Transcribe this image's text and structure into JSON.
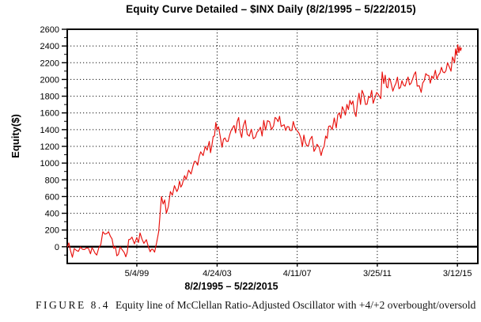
{
  "title": "Equity Curve Detailed – $INX Daily (8/2/1995 – 5/22/2015)",
  "caption": {
    "label": "FIGURE 8.4",
    "text": "Equity line of McClellan Ratio-Adjusted Oscillator with +4/+2 overbought/oversold"
  },
  "chart_data": {
    "type": "line",
    "title": "Equity Curve Detailed – $INX Daily (8/2/1995 – 5/22/2015)",
    "xlabel": "8/2/1995 – 5/22/2015",
    "ylabel": "Equity($)",
    "series_name": "Equity curve ($INX daily)",
    "line_color": "#e8100c",
    "grid": "dotted horizontal every 200, dotted vertical at date ticks",
    "legend": "none",
    "ylim": [
      -200,
      2600
    ],
    "y_label_ticks": [
      0,
      200,
      400,
      600,
      800,
      1000,
      1200,
      1400,
      1600,
      1800,
      2000,
      2200,
      2400,
      2600
    ],
    "y_minor_step": 100,
    "zero_line": 0,
    "xlim_years": [
      1995.9,
      2016.2
    ],
    "x_ticks": [
      {
        "year": 1999.34,
        "label": "5/4/99"
      },
      {
        "year": 2003.31,
        "label": "4/24/03"
      },
      {
        "year": 2007.27,
        "label": "4/11/07"
      },
      {
        "year": 2011.23,
        "label": "3/25/11"
      },
      {
        "year": 2015.19,
        "label": "3/12/15"
      }
    ],
    "points": [
      [
        1995.9,
        -5
      ],
      [
        1996.06,
        -45
      ],
      [
        1996.25,
        -20
      ],
      [
        1996.45,
        -55
      ],
      [
        1996.65,
        -30
      ],
      [
        1996.85,
        -15
      ],
      [
        1997.05,
        -85
      ],
      [
        1997.2,
        -40
      ],
      [
        1997.36,
        -100
      ],
      [
        1997.56,
        25
      ],
      [
        1997.76,
        150
      ],
      [
        1998.03,
        125
      ],
      [
        1998.2,
        -20
      ],
      [
        1998.43,
        -90
      ],
      [
        1998.6,
        -30
      ],
      [
        1998.72,
        -70
      ],
      [
        1998.94,
        85
      ],
      [
        1999.1,
        115
      ],
      [
        1999.22,
        35
      ],
      [
        1999.34,
        110
      ],
      [
        1999.5,
        165
      ],
      [
        1999.69,
        40
      ],
      [
        1999.81,
        85
      ],
      [
        2000.0,
        -60
      ],
      [
        2000.13,
        -30
      ],
      [
        2000.22,
        -65
      ],
      [
        2000.32,
        50
      ],
      [
        2000.42,
        180
      ],
      [
        2000.5,
        420
      ],
      [
        2000.56,
        600
      ],
      [
        2000.64,
        510
      ],
      [
        2000.72,
        560
      ],
      [
        2000.8,
        400
      ],
      [
        2000.9,
        480
      ],
      [
        2001.0,
        660
      ],
      [
        2001.1,
        615
      ],
      [
        2001.2,
        730
      ],
      [
        2001.32,
        660
      ],
      [
        2001.45,
        785
      ],
      [
        2001.58,
        740
      ],
      [
        2001.7,
        850
      ],
      [
        2001.78,
        805
      ],
      [
        2001.9,
        915
      ],
      [
        2002.02,
        870
      ],
      [
        2002.12,
        965
      ],
      [
        2002.25,
        1020
      ],
      [
        2002.35,
        975
      ],
      [
        2002.5,
        1135
      ],
      [
        2002.62,
        1090
      ],
      [
        2002.72,
        1200
      ],
      [
        2002.82,
        1155
      ],
      [
        2002.92,
        1260
      ],
      [
        2003.05,
        1210
      ],
      [
        2003.18,
        1325
      ],
      [
        2003.31,
        1400
      ],
      [
        2003.45,
        1340
      ],
      [
        2003.55,
        1190
      ],
      [
        2003.7,
        1300
      ],
      [
        2003.85,
        1260
      ],
      [
        2004.0,
        1390
      ],
      [
        2004.15,
        1450
      ],
      [
        2004.3,
        1495
      ],
      [
        2004.45,
        1375
      ],
      [
        2004.6,
        1440
      ],
      [
        2004.8,
        1345
      ],
      [
        2005.0,
        1405
      ],
      [
        2005.2,
        1310
      ],
      [
        2005.45,
        1430
      ],
      [
        2005.7,
        1395
      ],
      [
        2005.9,
        1495
      ],
      [
        2006.1,
        1445
      ],
      [
        2006.25,
        1530
      ],
      [
        2006.4,
        1560
      ],
      [
        2006.55,
        1450
      ],
      [
        2006.7,
        1390
      ],
      [
        2006.85,
        1435
      ],
      [
        2007.0,
        1390
      ],
      [
        2007.15,
        1430
      ],
      [
        2007.27,
        1385
      ],
      [
        2007.45,
        1300
      ],
      [
        2007.6,
        1335
      ],
      [
        2007.75,
        1205
      ],
      [
        2007.9,
        1280
      ],
      [
        2008.1,
        1140
      ],
      [
        2008.25,
        1225
      ],
      [
        2008.45,
        1090
      ],
      [
        2008.6,
        1200
      ],
      [
        2008.75,
        1295
      ],
      [
        2008.9,
        1445
      ],
      [
        2009.0,
        1400
      ],
      [
        2009.1,
        1540
      ],
      [
        2009.2,
        1420
      ],
      [
        2009.35,
        1600
      ],
      [
        2009.5,
        1675
      ],
      [
        2009.65,
        1575
      ],
      [
        2009.8,
        1640
      ],
      [
        2009.95,
        1700
      ],
      [
        2010.1,
        1605
      ],
      [
        2010.25,
        1730
      ],
      [
        2010.4,
        1700
      ],
      [
        2010.55,
        1825
      ],
      [
        2010.65,
        1700
      ],
      [
        2010.8,
        1795
      ],
      [
        2010.95,
        1870
      ],
      [
        2011.1,
        1770
      ],
      [
        2011.2,
        1845
      ],
      [
        2011.3,
        1815
      ],
      [
        2011.4,
        1770
      ],
      [
        2011.47,
        2090
      ],
      [
        2011.55,
        1950
      ],
      [
        2011.62,
        2050
      ],
      [
        2011.75,
        1900
      ],
      [
        2011.88,
        1985
      ],
      [
        2012.0,
        1860
      ],
      [
        2012.15,
        1955
      ],
      [
        2012.3,
        1890
      ],
      [
        2012.45,
        1985
      ],
      [
        2012.6,
        1920
      ],
      [
        2012.75,
        2030
      ],
      [
        2012.9,
        1955
      ],
      [
        2013.05,
        2060
      ],
      [
        2013.2,
        1920
      ],
      [
        2013.4,
        1845
      ],
      [
        2013.55,
        1985
      ],
      [
        2013.7,
        2050
      ],
      [
        2013.85,
        1955
      ],
      [
        2014.0,
        2010
      ],
      [
        2014.1,
        2110
      ],
      [
        2014.25,
        2050
      ],
      [
        2014.4,
        2145
      ],
      [
        2014.55,
        2080
      ],
      [
        2014.7,
        2200
      ],
      [
        2014.8,
        2145
      ],
      [
        2014.95,
        2270
      ],
      [
        2015.05,
        2200
      ],
      [
        2015.1,
        2365
      ],
      [
        2015.15,
        2290
      ],
      [
        2015.21,
        2415
      ],
      [
        2015.26,
        2320
      ],
      [
        2015.31,
        2390
      ],
      [
        2015.35,
        2345
      ],
      [
        2015.39,
        2380
      ]
    ]
  }
}
